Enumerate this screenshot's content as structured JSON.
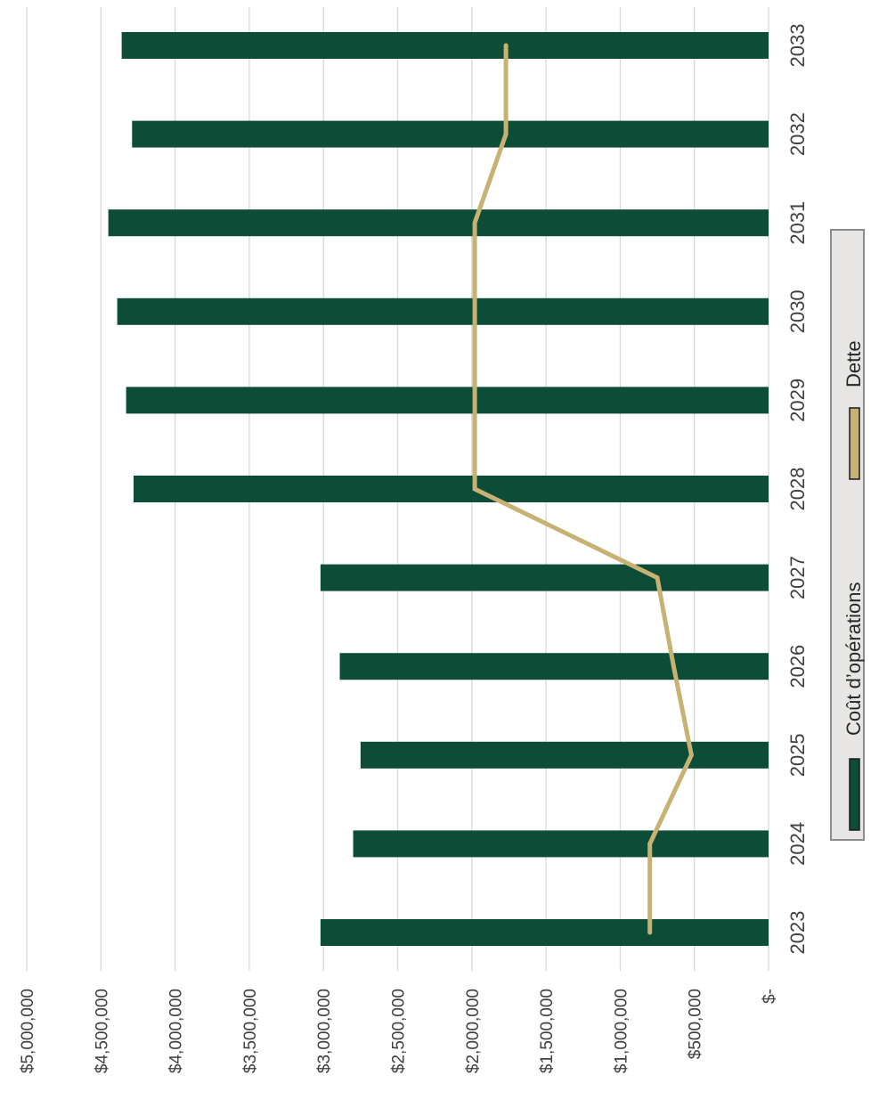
{
  "chart_data": {
    "type": "bar",
    "orientation": "rotated-90-ccw",
    "categories": [
      "2023",
      "2024",
      "2025",
      "2026",
      "2027",
      "2028",
      "2029",
      "2030",
      "2031",
      "2032",
      "2033"
    ],
    "series": [
      {
        "name": "Coût d’opérations",
        "type": "bar",
        "color": "#0d4d38",
        "values": [
          3020000,
          2800000,
          2750000,
          2890000,
          3020000,
          4280000,
          4330000,
          4390000,
          4450000,
          4290000,
          4360000
        ]
      },
      {
        "name": "Dette",
        "type": "line",
        "color": "#c8b273",
        "values": [
          800000,
          800000,
          520000,
          640000,
          750000,
          1980000,
          1980000,
          1980000,
          1980000,
          1770000,
          1770000
        ]
      }
    ],
    "value_ticks": [
      "$-",
      "$500,000",
      "$1,000,000",
      "$1,500,000",
      "$2,000,000",
      "$2,500,000",
      "$3,000,000",
      "$3,500,000",
      "$4,000,000",
      "$4,500,000",
      "$5,000,000"
    ],
    "ylim": [
      0,
      5000000
    ],
    "grid": true,
    "legend_position": "bottom"
  }
}
